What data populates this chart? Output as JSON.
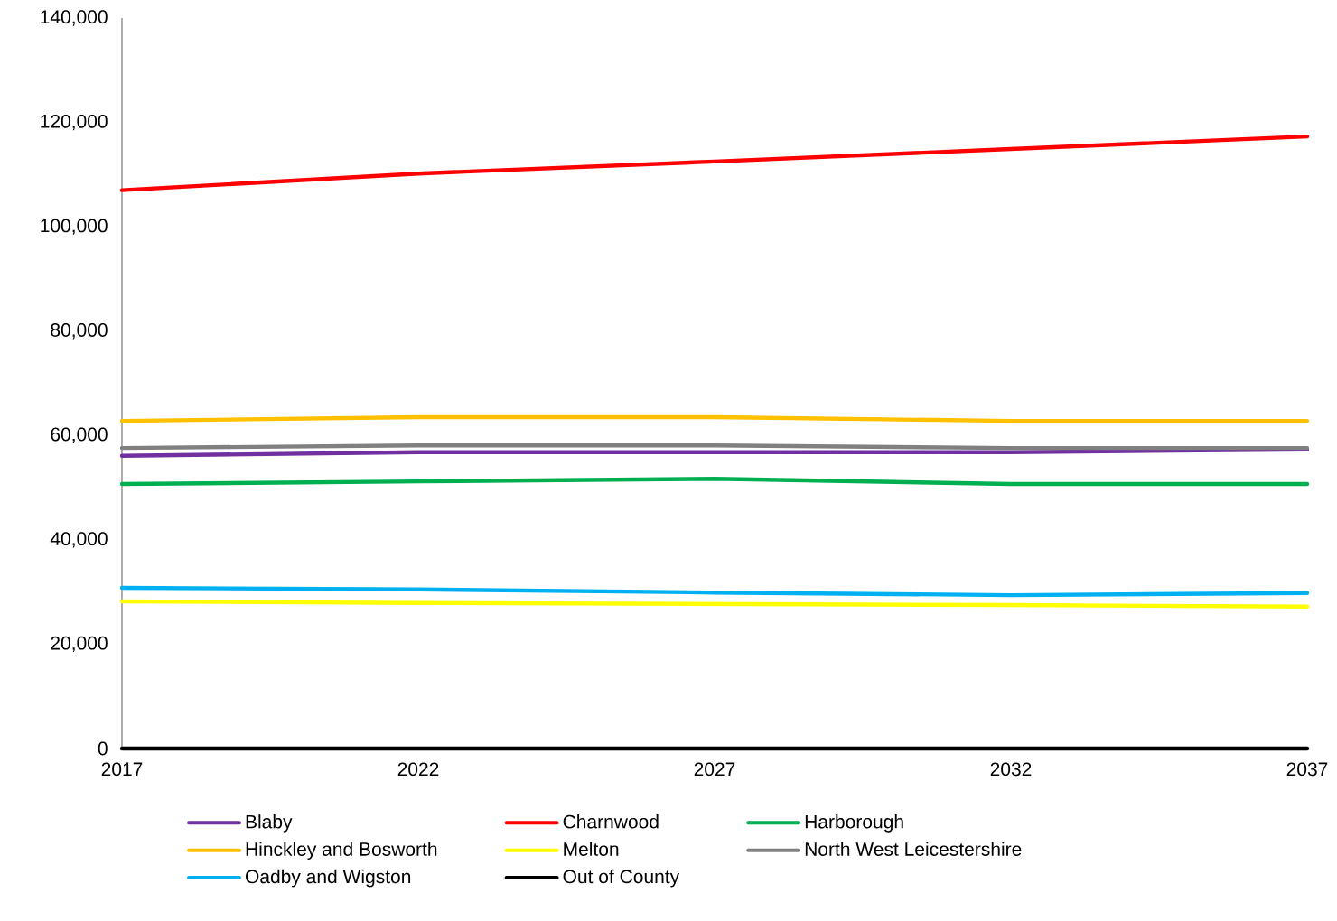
{
  "chart_data": {
    "type": "line",
    "x": [
      2017,
      2022,
      2027,
      2032,
      2037
    ],
    "xlim": [
      2017,
      2037
    ],
    "xticks": [
      2017,
      2022,
      2027,
      2032,
      2037
    ],
    "ylim": [
      0,
      140000
    ],
    "yticks": [
      {
        "value": 0,
        "label": "0"
      },
      {
        "value": 20000,
        "label": "20,000"
      },
      {
        "value": 40000,
        "label": "40,000"
      },
      {
        "value": 60000,
        "label": "60,000"
      },
      {
        "value": 80000,
        "label": "80,000"
      },
      {
        "value": 100000,
        "label": "100,000"
      },
      {
        "value": 120000,
        "label": "120,000"
      },
      {
        "value": 140000,
        "label": "140,000"
      }
    ],
    "grid": false,
    "legend": "bottom",
    "marker": "none",
    "line_style": "solid",
    "series": [
      {
        "name": "Blaby",
        "color": "#7030a0",
        "values": [
          56100,
          56800,
          56800,
          56800,
          57300
        ]
      },
      {
        "name": "Charnwood",
        "color": "#ff0000",
        "values": [
          107000,
          110200,
          112500,
          114900,
          117300
        ]
      },
      {
        "name": "Harborough",
        "color": "#00b050",
        "values": [
          50700,
          51200,
          51700,
          50700,
          50700
        ]
      },
      {
        "name": "Hinckley and Bosworth",
        "color": "#ffc000",
        "values": [
          62800,
          63500,
          63500,
          62800,
          62800
        ]
      },
      {
        "name": "Melton",
        "color": "#ffff00",
        "values": [
          28200,
          27900,
          27700,
          27500,
          27200
        ]
      },
      {
        "name": "North West Leicestershire",
        "color": "#808080",
        "values": [
          57600,
          58100,
          58100,
          57600,
          57600
        ]
      },
      {
        "name": "Oadby and Wigston",
        "color": "#00b0f0",
        "values": [
          30800,
          30500,
          29900,
          29400,
          29800
        ]
      },
      {
        "name": "Out of County",
        "color": "#000000",
        "values": [
          0,
          0,
          0,
          0,
          0
        ]
      }
    ]
  }
}
